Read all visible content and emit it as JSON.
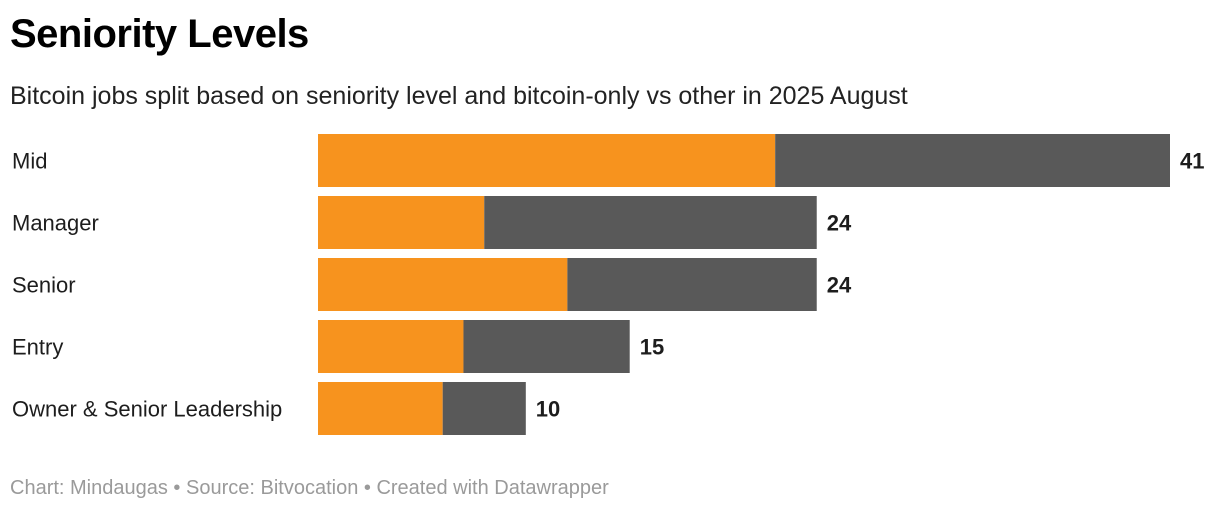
{
  "title": "Seniority Levels",
  "subtitle": "Bitcoin jobs split based on seniority level and bitcoin-only vs other in 2025 August",
  "footer": {
    "chart_by": "Chart: Mindaugas",
    "sep1": " • ",
    "source": "Source: Bitvocation",
    "sep2": " • ",
    "created": "Created with Datawrapper"
  },
  "colors": {
    "bitcoin_only": "#f7931e",
    "other": "#595959"
  },
  "chart_data": {
    "type": "bar",
    "orientation": "horizontal",
    "stacked": true,
    "title": "Seniority Levels",
    "categories": [
      "Mid",
      "Manager",
      "Senior",
      "Entry",
      "Owner & Senior Leadership"
    ],
    "series": [
      {
        "name": "Bitcoin-only",
        "color": "#f7931e",
        "values": [
          22,
          8,
          12,
          7,
          6
        ]
      },
      {
        "name": "Other",
        "color": "#595959",
        "values": [
          19,
          16,
          12,
          8,
          4
        ]
      }
    ],
    "totals": [
      "41",
      "24",
      "24",
      "15",
      "10"
    ],
    "xlim": [
      0,
      41
    ],
    "grid": false,
    "legend": "none"
  }
}
